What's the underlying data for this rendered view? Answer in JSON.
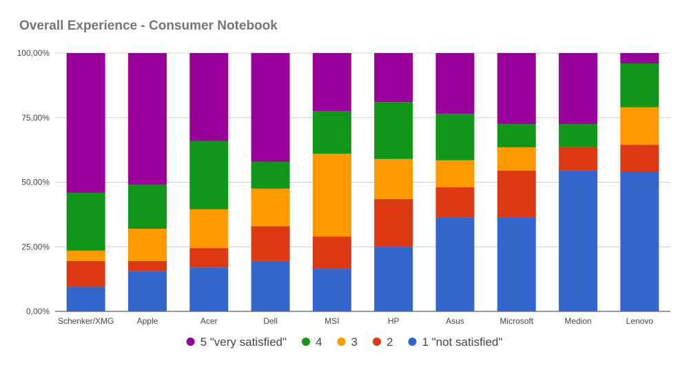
{
  "chart_data": {
    "type": "bar",
    "stacked": true,
    "title": "Overall Experience - Consumer Notebook",
    "categories": [
      "Schenker/XMG",
      "Apple",
      "Acer",
      "Dell",
      "MSI",
      "HP",
      "Asus",
      "Microsoft",
      "Medion",
      "Lenovo"
    ],
    "y_ticks": [
      "0,00%",
      "25,00%",
      "50,00%",
      "75,00%",
      "100,00%"
    ],
    "ylim": [
      0,
      100
    ],
    "grid": true,
    "legend_position": "bottom",
    "series": [
      {
        "name": "1 \"not satisfied\"",
        "color": "#3366cc",
        "values": [
          9.5,
          15.5,
          17,
          19.5,
          16.5,
          25,
          36.5,
          36.5,
          54.5,
          54
        ]
      },
      {
        "name": "2",
        "color": "#dc3912",
        "values": [
          10,
          4,
          7.5,
          13.5,
          12.5,
          18.5,
          11.5,
          18,
          9,
          10.5
        ]
      },
      {
        "name": "3",
        "color": "#ff9900",
        "values": [
          4,
          12.5,
          15,
          14.5,
          32,
          15.5,
          10.5,
          9,
          0,
          14.5
        ]
      },
      {
        "name": "4",
        "color": "#109618",
        "values": [
          22.5,
          17,
          26.5,
          10.5,
          16.5,
          22,
          18,
          9,
          9,
          17
        ]
      },
      {
        "name": "5 \"very satisfied\"",
        "color": "#990099",
        "values": [
          54,
          51,
          34,
          42,
          22.5,
          19,
          23.5,
          27.5,
          27.5,
          4
        ]
      }
    ],
    "legend_order": [
      4,
      3,
      2,
      1,
      0
    ]
  }
}
